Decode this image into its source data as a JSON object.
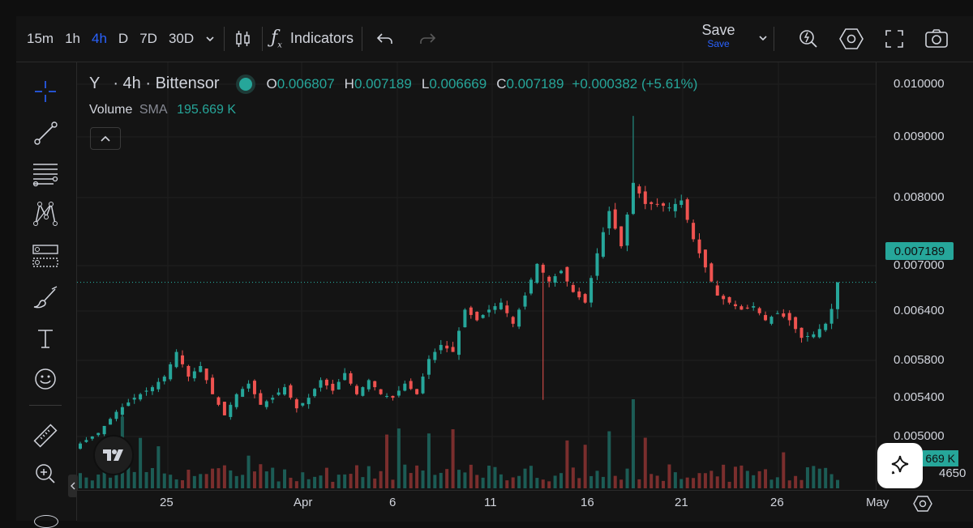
{
  "timeframes": [
    "15m",
    "1h",
    "4h",
    "D",
    "7D",
    "30D"
  ],
  "active_timeframe": "4h",
  "toolbar": {
    "indicators_label": "Indicators",
    "save_label": "Save",
    "save_sub_label": "Save"
  },
  "legend": {
    "symbol": "Υ",
    "interval_name": "· 4h · Bittensor",
    "ohlc": [
      {
        "k": "O",
        "v": "0.006807"
      },
      {
        "k": "H",
        "v": "0.007189"
      },
      {
        "k": "L",
        "v": "0.006669"
      },
      {
        "k": "C",
        "v": "0.007189"
      }
    ],
    "change": "+0.000382 (+5.61%)",
    "volume_label": "Volume",
    "volume_sma": "SMA",
    "volume_value": "195.669 K"
  },
  "price_axis": {
    "ticks": [
      "0.010000",
      "0.009000",
      "0.008000",
      "0.007000",
      "0.006400",
      "0.005800",
      "0.005400",
      "0.005000",
      "4650"
    ],
    "current_price": "0.007189",
    "volume_badge": "669 K"
  },
  "time_axis": {
    "ticks": [
      "25",
      "Apr",
      "6",
      "11",
      "16",
      "21",
      "26",
      "May"
    ]
  },
  "colors": {
    "up": "#26a69a",
    "down": "#ef5350",
    "accent": "#2962ff",
    "background": "#141414"
  },
  "chart_data": {
    "type": "candlestick",
    "pair": "Bittensor",
    "interval": "4h",
    "ylim": [
      0.0048,
      0.0102
    ],
    "x_ticks": [
      "25",
      "Apr",
      "6",
      "11",
      "16",
      "21",
      "26",
      "May"
    ],
    "last": {
      "open": 0.006807,
      "high": 0.007189,
      "low": 0.006669,
      "close": 0.007189
    },
    "close_path": [
      [
        0,
        0.0049
      ],
      [
        3,
        0.00505
      ],
      [
        6,
        0.00535
      ],
      [
        9,
        0.00555
      ],
      [
        12,
        0.0057
      ],
      [
        14,
        0.00585
      ],
      [
        16,
        0.0062
      ],
      [
        18,
        0.00585
      ],
      [
        20,
        0.006
      ],
      [
        22,
        0.0056
      ],
      [
        24,
        0.0053
      ],
      [
        26,
        0.0056
      ],
      [
        28,
        0.00575
      ],
      [
        30,
        0.00545
      ],
      [
        32,
        0.00555
      ],
      [
        34,
        0.0057
      ],
      [
        36,
        0.0054
      ],
      [
        38,
        0.00555
      ],
      [
        40,
        0.0058
      ],
      [
        42,
        0.00565
      ],
      [
        44,
        0.0059
      ],
      [
        46,
        0.0056
      ],
      [
        48,
        0.0058
      ],
      [
        50,
        0.0056
      ],
      [
        52,
        0.00555
      ],
      [
        54,
        0.00575
      ],
      [
        56,
        0.0056
      ],
      [
        58,
        0.0061
      ],
      [
        60,
        0.0063
      ],
      [
        62,
        0.0062
      ],
      [
        64,
        0.0068
      ],
      [
        66,
        0.00665
      ],
      [
        68,
        0.0068
      ],
      [
        70,
        0.0069
      ],
      [
        72,
        0.0066
      ],
      [
        74,
        0.007
      ],
      [
        76,
        0.00745
      ],
      [
        78,
        0.0072
      ],
      [
        80,
        0.00735
      ],
      [
        82,
        0.00705
      ],
      [
        84,
        0.0069
      ],
      [
        86,
        0.0076
      ],
      [
        88,
        0.0082
      ],
      [
        90,
        0.0077
      ],
      [
        92,
        0.0086
      ],
      [
        94,
        0.0083
      ],
      [
        96,
        0.0083
      ],
      [
        98,
        0.00825
      ],
      [
        100,
        0.00835
      ],
      [
        102,
        0.0078
      ],
      [
        104,
        0.0074
      ],
      [
        106,
        0.007
      ],
      [
        108,
        0.0069
      ],
      [
        110,
        0.0068
      ],
      [
        112,
        0.00685
      ],
      [
        114,
        0.00665
      ],
      [
        116,
        0.00675
      ],
      [
        118,
        0.00665
      ],
      [
        120,
        0.0064
      ],
      [
        122,
        0.00645
      ],
      [
        124,
        0.0066
      ],
      [
        125,
        0.00681
      ],
      [
        126,
        0.007189
      ]
    ]
  }
}
